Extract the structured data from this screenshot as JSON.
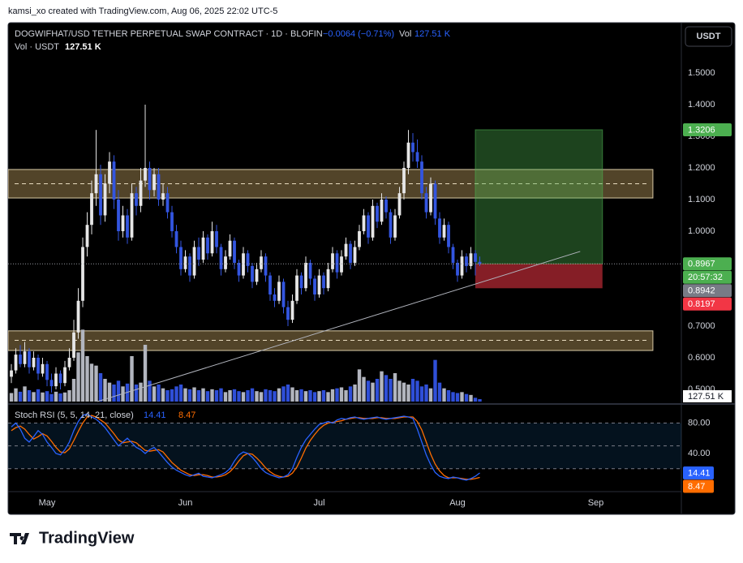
{
  "header": {
    "caption": "kamsi_xo created with TradingView.com, Aug 06, 2025 22:02 UTC-5",
    "currency_button": "USDT",
    "logo": "TradingView"
  },
  "chart_data": {
    "type": "candlestick",
    "title": "DOGWIFHAT/USD TETHER PERPETUAL SWAP CONTRACT · 1D · BLOFIN",
    "change_label": "−0.0064 (−0.71%)",
    "volume_legend": "Vol",
    "volume_legend_value": "127.51 K",
    "volume_title": "Vol · USDT",
    "volume_title_value": "127.51 K",
    "volume_axis_label": "127.51 K",
    "up_color": "#e6e6e6",
    "down_color": "#3355e0",
    "volume_up_color": "#b2b5be",
    "volume_down_color": "#2f4fd8",
    "xlim": [
      -0.73,
      150.18
    ],
    "xticks": [
      {
        "value": 8,
        "label": "May"
      },
      {
        "value": 39,
        "label": "Jun"
      },
      {
        "value": 69,
        "label": "Jul"
      },
      {
        "value": 100,
        "label": "Aug"
      },
      {
        "value": 131,
        "label": "Sep"
      }
    ],
    "ylim": [
      0.4564,
      1.6538
    ],
    "yticks": [
      {
        "value": 1.5,
        "label": "1.5000"
      },
      {
        "value": 1.4,
        "label": "1.4000"
      },
      {
        "value": 1.3,
        "label": "1.3000"
      },
      {
        "value": 1.2,
        "label": "1.2000"
      },
      {
        "value": 1.1,
        "label": "1.1000"
      },
      {
        "value": 1.0,
        "label": "1.0000"
      },
      {
        "value": 0.7,
        "label": "0.7000"
      },
      {
        "value": 0.6,
        "label": "0.6000"
      },
      {
        "value": 0.5,
        "label": "0.5000"
      }
    ],
    "ohlc": [
      [
        0.54,
        0.58,
        0.52,
        0.56
      ],
      [
        0.56,
        0.63,
        0.55,
        0.61
      ],
      [
        0.61,
        0.64,
        0.57,
        0.58
      ],
      [
        0.58,
        0.65,
        0.57,
        0.62
      ],
      [
        0.62,
        0.63,
        0.55,
        0.57
      ],
      [
        0.57,
        0.62,
        0.56,
        0.6
      ],
      [
        0.6,
        0.61,
        0.53,
        0.55
      ],
      [
        0.55,
        0.6,
        0.54,
        0.58
      ],
      [
        0.58,
        0.59,
        0.51,
        0.53
      ],
      [
        0.53,
        0.55,
        0.49,
        0.51
      ],
      [
        0.51,
        0.57,
        0.5,
        0.55
      ],
      [
        0.55,
        0.56,
        0.5,
        0.52
      ],
      [
        0.52,
        0.59,
        0.51,
        0.57
      ],
      [
        0.57,
        0.63,
        0.56,
        0.6
      ],
      [
        0.6,
        0.72,
        0.59,
        0.68
      ],
      [
        0.68,
        0.82,
        0.66,
        0.78
      ],
      [
        0.78,
        0.98,
        0.76,
        0.95
      ],
      [
        0.95,
        1.06,
        0.92,
        1.02
      ],
      [
        1.02,
        1.16,
        0.99,
        1.12
      ],
      [
        1.12,
        1.32,
        1.08,
        1.18
      ],
      [
        1.18,
        1.21,
        1.02,
        1.05
      ],
      [
        1.05,
        1.18,
        1.03,
        1.15
      ],
      [
        1.15,
        1.25,
        1.12,
        1.22
      ],
      [
        1.22,
        1.24,
        1.07,
        1.1
      ],
      [
        1.1,
        1.13,
        0.97,
        1.0
      ],
      [
        1.0,
        1.08,
        0.98,
        1.05
      ],
      [
        1.05,
        1.07,
        0.96,
        0.98
      ],
      [
        0.98,
        1.15,
        0.97,
        1.12
      ],
      [
        1.12,
        1.14,
        1.05,
        1.08
      ],
      [
        1.08,
        1.2,
        1.06,
        1.16
      ],
      [
        1.16,
        1.4,
        1.14,
        1.2
      ],
      [
        1.2,
        1.22,
        1.1,
        1.13
      ],
      [
        1.13,
        1.2,
        1.11,
        1.18
      ],
      [
        1.18,
        1.2,
        1.08,
        1.1
      ],
      [
        1.1,
        1.15,
        1.08,
        1.12
      ],
      [
        1.12,
        1.14,
        1.04,
        1.06
      ],
      [
        1.06,
        1.08,
        0.98,
        1.0
      ],
      [
        1.0,
        1.02,
        0.93,
        0.95
      ],
      [
        0.95,
        0.97,
        0.86,
        0.88
      ],
      [
        0.88,
        0.94,
        0.87,
        0.92
      ],
      [
        0.92,
        0.93,
        0.84,
        0.86
      ],
      [
        0.86,
        0.97,
        0.85,
        0.95
      ],
      [
        0.95,
        0.98,
        0.89,
        0.91
      ],
      [
        0.91,
        1.0,
        0.9,
        0.98
      ],
      [
        0.98,
        0.99,
        0.91,
        0.93
      ],
      [
        0.93,
        1.03,
        0.92,
        1.0
      ],
      [
        1.0,
        1.02,
        0.93,
        0.95
      ],
      [
        0.95,
        0.96,
        0.86,
        0.88
      ],
      [
        0.88,
        0.94,
        0.87,
        0.92
      ],
      [
        0.92,
        0.99,
        0.91,
        0.97
      ],
      [
        0.97,
        0.98,
        0.88,
        0.9
      ],
      [
        0.9,
        0.91,
        0.84,
        0.86
      ],
      [
        0.86,
        0.95,
        0.85,
        0.93
      ],
      [
        0.93,
        0.94,
        0.87,
        0.89
      ],
      [
        0.89,
        0.9,
        0.82,
        0.84
      ],
      [
        0.84,
        0.9,
        0.83,
        0.88
      ],
      [
        0.88,
        0.94,
        0.87,
        0.92
      ],
      [
        0.92,
        0.93,
        0.84,
        0.86
      ],
      [
        0.86,
        0.87,
        0.78,
        0.8
      ],
      [
        0.8,
        0.82,
        0.76,
        0.78
      ],
      [
        0.78,
        0.86,
        0.77,
        0.84
      ],
      [
        0.84,
        0.85,
        0.74,
        0.76
      ],
      [
        0.76,
        0.78,
        0.7,
        0.72
      ],
      [
        0.72,
        0.8,
        0.71,
        0.78
      ],
      [
        0.78,
        0.88,
        0.77,
        0.86
      ],
      [
        0.86,
        0.87,
        0.8,
        0.82
      ],
      [
        0.82,
        0.92,
        0.81,
        0.9
      ],
      [
        0.9,
        0.91,
        0.83,
        0.85
      ],
      [
        0.85,
        0.86,
        0.78,
        0.8
      ],
      [
        0.8,
        0.88,
        0.79,
        0.86
      ],
      [
        0.86,
        0.87,
        0.8,
        0.82
      ],
      [
        0.82,
        0.9,
        0.81,
        0.88
      ],
      [
        0.88,
        0.95,
        0.87,
        0.93
      ],
      [
        0.93,
        0.94,
        0.85,
        0.87
      ],
      [
        0.87,
        0.94,
        0.86,
        0.92
      ],
      [
        0.92,
        0.98,
        0.91,
        0.96
      ],
      [
        0.96,
        0.97,
        0.88,
        0.9
      ],
      [
        0.9,
        0.97,
        0.89,
        0.95
      ],
      [
        0.95,
        1.02,
        0.94,
        1.0
      ],
      [
        1.0,
        1.07,
        0.99,
        1.05
      ],
      [
        1.05,
        1.06,
        0.96,
        0.98
      ],
      [
        0.98,
        1.1,
        0.97,
        1.08
      ],
      [
        1.08,
        1.09,
        1.01,
        1.03
      ],
      [
        1.03,
        1.12,
        1.02,
        1.1
      ],
      [
        1.1,
        1.11,
        1.04,
        1.06
      ],
      [
        1.06,
        1.07,
        0.96,
        0.98
      ],
      [
        0.98,
        1.07,
        0.97,
        1.05
      ],
      [
        1.05,
        1.14,
        1.04,
        1.12
      ],
      [
        1.12,
        1.22,
        1.1,
        1.2
      ],
      [
        1.2,
        1.32,
        1.18,
        1.28
      ],
      [
        1.28,
        1.31,
        1.22,
        1.25
      ],
      [
        1.25,
        1.29,
        1.2,
        1.22
      ],
      [
        1.22,
        1.24,
        1.1,
        1.12
      ],
      [
        1.12,
        1.14,
        1.04,
        1.06
      ],
      [
        1.06,
        1.17,
        1.05,
        1.15
      ],
      [
        1.15,
        1.16,
        1.02,
        1.04
      ],
      [
        1.04,
        1.06,
        0.96,
        0.98
      ],
      [
        0.98,
        1.04,
        0.97,
        1.02
      ],
      [
        1.02,
        1.03,
        0.93,
        0.95
      ],
      [
        0.95,
        0.96,
        0.88,
        0.9
      ],
      [
        0.9,
        0.91,
        0.84,
        0.86
      ],
      [
        0.86,
        0.94,
        0.85,
        0.92
      ],
      [
        0.92,
        0.93,
        0.87,
        0.89
      ],
      [
        0.89,
        0.95,
        0.88,
        0.93
      ],
      [
        0.93,
        0.94,
        0.86,
        0.9031
      ],
      [
        0.9031,
        0.92,
        0.89,
        0.8967
      ]
    ],
    "volume": [
      450,
      700,
      520,
      800,
      600,
      500,
      650,
      480,
      550,
      400,
      520,
      430,
      480,
      600,
      1200,
      2600,
      3800,
      2400,
      2000,
      1900,
      1500,
      1200,
      1000,
      900,
      1100,
      800,
      950,
      2400,
      900,
      1000,
      3000,
      1100,
      800,
      900,
      700,
      600,
      650,
      800,
      900,
      700,
      650,
      750,
      600,
      700,
      550,
      650,
      600,
      700,
      500,
      600,
      650,
      550,
      500,
      600,
      700,
      550,
      500,
      650,
      600,
      550,
      700,
      800,
      900,
      750,
      600,
      650,
      550,
      600,
      500,
      550,
      600,
      500,
      650,
      700,
      750,
      600,
      800,
      900,
      1700,
      1300,
      1100,
      1000,
      1200,
      1600,
      1400,
      1200,
      1500,
      1100,
      1000,
      900,
      1200,
      1100,
      800,
      900,
      700,
      2200,
      1000,
      700,
      600,
      500,
      450,
      500,
      400,
      350,
      200,
      127.51
    ],
    "volume_ylim": [
      0,
      4500
    ],
    "price_labels": [
      {
        "value": 1.3206,
        "label": "1.3206",
        "color": "#4caf50"
      },
      {
        "value": 0.8967,
        "label": "0.8967",
        "color": "#4caf50"
      },
      {
        "value": 0.8942,
        "label": "0.8942",
        "color": "#787b86"
      },
      {
        "value": 0.8197,
        "label": "0.8197",
        "color": "#f23645"
      }
    ],
    "countdown": "20:57:32",
    "zones": [
      {
        "low": 1.105,
        "high": 1.195,
        "mid": 1.15,
        "x": [
          -0.73,
          143.8
        ]
      },
      {
        "low": 0.623,
        "high": 0.685,
        "mid": 0.655,
        "x": [
          -0.73,
          143.8
        ]
      }
    ],
    "trendline": {
      "x": [
        19.3,
        127.5
      ],
      "y": [
        0.4615,
        0.936
      ]
    },
    "position": {
      "x": [
        104,
        132.5
      ],
      "entry": 0.8967,
      "target": 1.3206,
      "stop": 0.8197
    },
    "stoch": {
      "title": "Stoch RSI (5, 5, 14, 21, close)",
      "ylim": [
        -9.1,
        102.9
      ],
      "yticks": [
        {
          "value": 80,
          "label": "80.00"
        },
        {
          "value": 40,
          "label": "40.00"
        }
      ],
      "bands": [
        80,
        50,
        20
      ],
      "series": [
        {
          "color": "#2962ff",
          "last_label": "14.41",
          "values": [
            75,
            80,
            72,
            60,
            55,
            62,
            70,
            65,
            55,
            48,
            40,
            38,
            45,
            55,
            70,
            82,
            90,
            92,
            88,
            85,
            80,
            74,
            66,
            58,
            50,
            55,
            60,
            54,
            48,
            45,
            40,
            45,
            48,
            42,
            35,
            28,
            22,
            18,
            15,
            12,
            10,
            12,
            14,
            10,
            9,
            8,
            10,
            12,
            15,
            20,
            30,
            38,
            42,
            40,
            35,
            28,
            20,
            15,
            12,
            10,
            8,
            9,
            12,
            20,
            35,
            48,
            58,
            65,
            72,
            78,
            80,
            82,
            80,
            84,
            86,
            85,
            87,
            88,
            86,
            85,
            86,
            87,
            88,
            86,
            85,
            86,
            87,
            88,
            89,
            88,
            86,
            72,
            55,
            38,
            25,
            15,
            10,
            8,
            7,
            9,
            8,
            6,
            5,
            7,
            10,
            14.41
          ]
        },
        {
          "color": "#ff6d00",
          "last_label": "8.47",
          "values": [
            70,
            74,
            76,
            72,
            65,
            59,
            62,
            66,
            63,
            56,
            48,
            42,
            41,
            46,
            57,
            69,
            80,
            88,
            90,
            88,
            84,
            80,
            73,
            66,
            58,
            54,
            55,
            56,
            54,
            49,
            44,
            43,
            44,
            45,
            42,
            35,
            28,
            23,
            18,
            15,
            12,
            11,
            12,
            12,
            11,
            9,
            9,
            10,
            12,
            16,
            22,
            30,
            37,
            40,
            39,
            34,
            28,
            21,
            16,
            12,
            10,
            9,
            10,
            14,
            22,
            34,
            47,
            57,
            65,
            72,
            77,
            80,
            81,
            82,
            83,
            85,
            86,
            87,
            87,
            86,
            86,
            86,
            87,
            87,
            86,
            86,
            86,
            87,
            88,
            88,
            88,
            82,
            71,
            55,
            39,
            26,
            17,
            11,
            8,
            8,
            8,
            7,
            6,
            6,
            7,
            8.47
          ]
        }
      ]
    }
  }
}
